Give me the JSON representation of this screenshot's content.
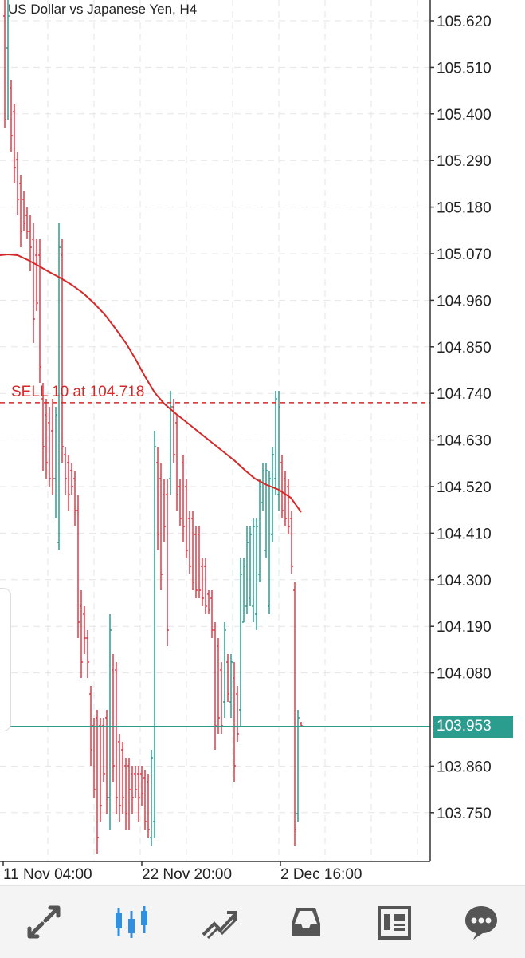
{
  "chart": {
    "title": "US Dollar vs Japanese Yen, H4",
    "current_price": "103.953",
    "order_label": "SELL 10 at 104.718",
    "order_price": 104.718,
    "price_axis_labels": [
      "105.620",
      "105.510",
      "105.400",
      "105.290",
      "105.180",
      "105.070",
      "104.960",
      "104.850",
      "104.740",
      "104.630",
      "104.520",
      "104.410",
      "104.300",
      "104.190",
      "104.080",
      "103.860",
      "103.750"
    ],
    "time_axis_labels": [
      "11 Nov 04:00",
      "22 Nov 20:00",
      "2 Dec 16:00"
    ],
    "colors": {
      "bull": "#2a9d8f",
      "bear": "#e63946",
      "ma": "#d62828",
      "grid": "#e5e5e5",
      "price_line": "#2a9d8f"
    }
  },
  "bottom_nav": {
    "items": [
      {
        "name": "quotes",
        "icon": "arrows-icon",
        "active": false
      },
      {
        "name": "chart",
        "icon": "candlestick-icon",
        "active": true
      },
      {
        "name": "trade",
        "icon": "trend-icon",
        "active": false
      },
      {
        "name": "history",
        "icon": "inbox-icon",
        "active": false
      },
      {
        "name": "news",
        "icon": "news-icon",
        "active": false
      },
      {
        "name": "messages",
        "icon": "chat-icon",
        "active": false
      }
    ]
  }
}
